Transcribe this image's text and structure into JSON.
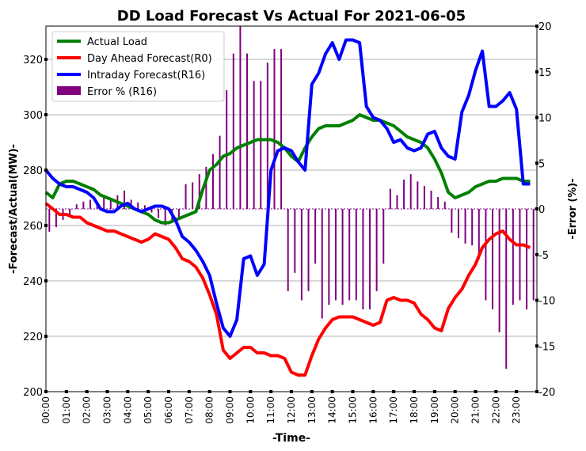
{
  "chart_data": {
    "type": "line",
    "title": "DD Load Forecast Vs Actual For 2021-06-05",
    "xlabel": "-Time-",
    "ylabel": "-Forecast/Actual(MW)-",
    "y2label": "-Error (%)-",
    "ylim": [
      200,
      332
    ],
    "y2lim": [
      -20,
      20
    ],
    "yticks": [
      200,
      220,
      240,
      260,
      280,
      300,
      320
    ],
    "y2ticks": [
      -20,
      -15,
      -10,
      -5,
      0,
      5,
      10,
      15,
      20
    ],
    "grid": true,
    "legend_position": "top-left",
    "xticks": [
      "00:00",
      "01:00",
      "02:00",
      "03:00",
      "04:00",
      "05:00",
      "06:00",
      "07:00",
      "08:00",
      "09:00",
      "10:00",
      "11:00",
      "12:00",
      "13:00",
      "14:00",
      "15:00",
      "16:00",
      "17:00",
      "18:00",
      "19:00",
      "20:00",
      "21:00",
      "22:00",
      "23:00"
    ],
    "series": [
      {
        "name": "Actual Load",
        "color": "#008000",
        "values": [
          272,
          270,
          275,
          276,
          276,
          275,
          274,
          273,
          271,
          270,
          269,
          268,
          267,
          266,
          265,
          264,
          262,
          261,
          261,
          262,
          263,
          264,
          265,
          273,
          280,
          282,
          285,
          286,
          288,
          289,
          290,
          291,
          291,
          291,
          290,
          288,
          285,
          283,
          288,
          292,
          295,
          296,
          296,
          296,
          297,
          298,
          300,
          299,
          298,
          298,
          297,
          296,
          294,
          292,
          291,
          290,
          288,
          284,
          279,
          272,
          270,
          271,
          272,
          274,
          275,
          276,
          276,
          277,
          277,
          277,
          276,
          276
        ]
      },
      {
        "name": "Day Ahead Forecast(R0)",
        "color": "#ff0000",
        "values": [
          268,
          266,
          264,
          264,
          263,
          263,
          261,
          260,
          259,
          258,
          258,
          257,
          256,
          255,
          254,
          255,
          257,
          256,
          255,
          252,
          248,
          247,
          245,
          241,
          235,
          228,
          215,
          212,
          214,
          216,
          216,
          214,
          214,
          213,
          213,
          212,
          207,
          206,
          206,
          213,
          219,
          223,
          226,
          227,
          227,
          227,
          226,
          225,
          224,
          225,
          233,
          234,
          233,
          233,
          232,
          228,
          226,
          223,
          222,
          230,
          234,
          237,
          242,
          246,
          252,
          255,
          257,
          258,
          255,
          253,
          253,
          252
        ]
      },
      {
        "name": "Intraday Forecast(R16)",
        "color": "#0000ff",
        "values": [
          280,
          277,
          275,
          274,
          274,
          273,
          272,
          270,
          266,
          265,
          265,
          267,
          268,
          266,
          265,
          266,
          267,
          267,
          266,
          262,
          256,
          254,
          251,
          247,
          242,
          232,
          223,
          220,
          226,
          248,
          249,
          242,
          246,
          280,
          287,
          288,
          287,
          283,
          280,
          311,
          315,
          322,
          326,
          320,
          327,
          327,
          326,
          303,
          299,
          298,
          295,
          290,
          291,
          288,
          287,
          288,
          293,
          294,
          288,
          285,
          284,
          301,
          307,
          316,
          323,
          303,
          303,
          305,
          308,
          302,
          275,
          275
        ]
      },
      {
        "name": "Error % (R16)",
        "color": "#800080",
        "type": "bar",
        "axis": "right",
        "values": [
          -2.5,
          -2,
          -1.2,
          -0.8,
          0.5,
          0.8,
          1,
          0.8,
          1.3,
          1,
          1.5,
          2,
          1,
          0.7,
          0.4,
          -0.4,
          -1,
          -1.8,
          -1.3,
          -1.1,
          2.7,
          2.9,
          3.8,
          4.6,
          6,
          8,
          13,
          17,
          20,
          17,
          14,
          14,
          16,
          17.5,
          17.5,
          -9,
          -7,
          -10,
          -9,
          -6,
          -12,
          -10.5,
          -10,
          -10.5,
          -10,
          -10,
          -11,
          -11,
          -9,
          -6,
          2.2,
          1.5,
          3.2,
          3.8,
          3,
          2.5,
          2,
          1.3,
          0.8,
          -2.6,
          -3.2,
          -3.8,
          -4,
          -5.5,
          -10,
          -11,
          -13.5,
          -17.5,
          -10.5,
          -10,
          -11,
          -10
        ]
      }
    ]
  }
}
